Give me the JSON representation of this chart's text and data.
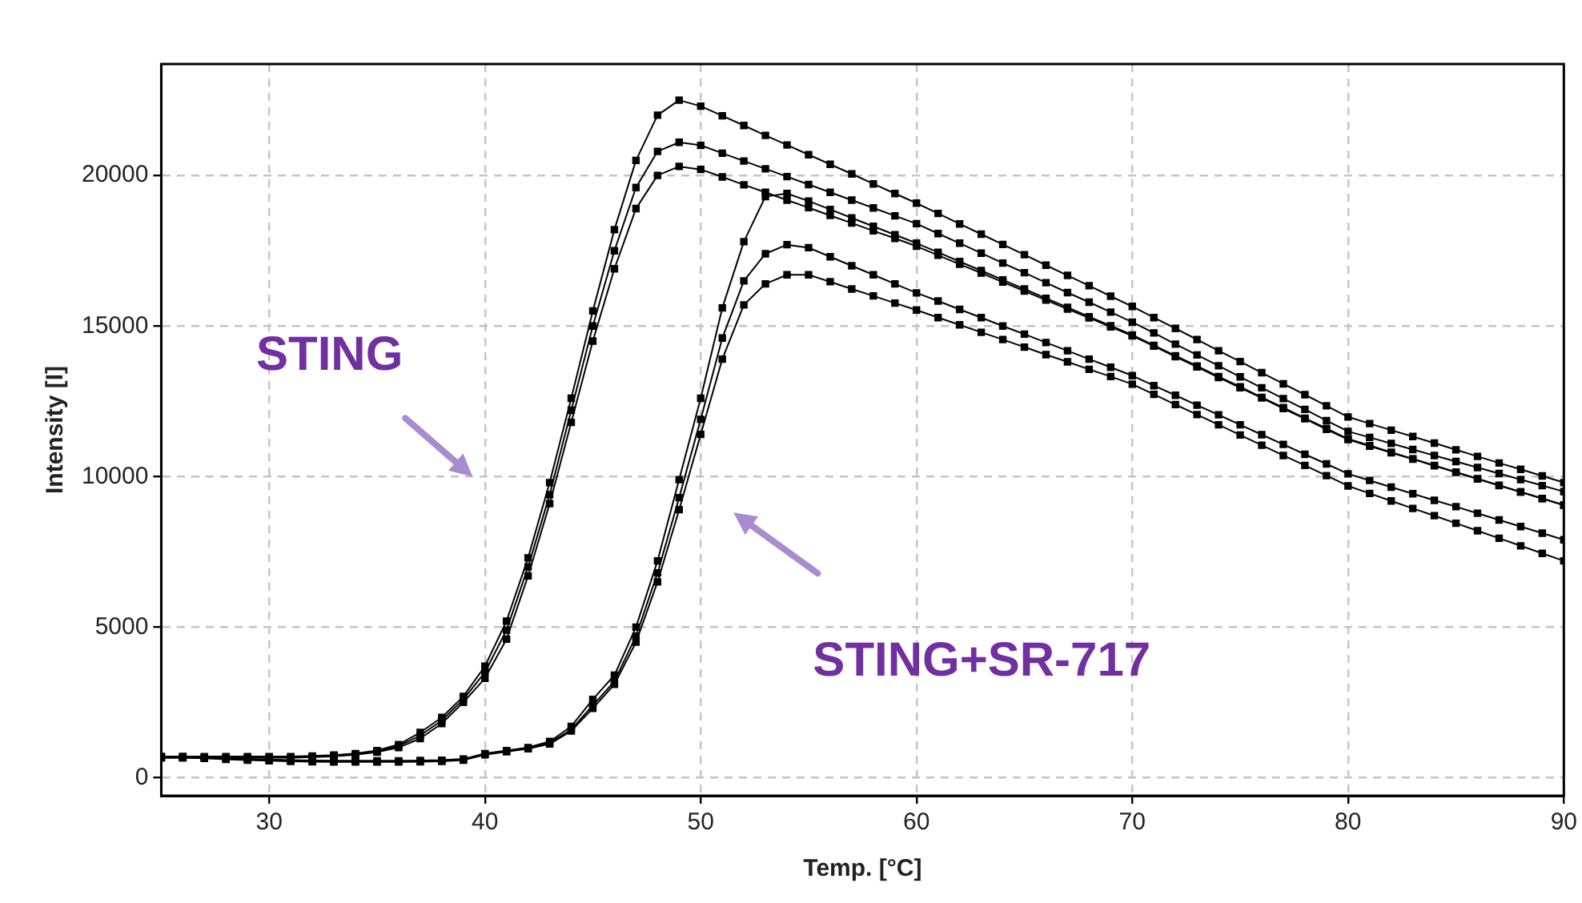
{
  "chart_data": {
    "type": "line",
    "xlabel": "Temp. [°C]",
    "ylabel": "Intensity [I]",
    "x": [
      25,
      26,
      27,
      28,
      29,
      30,
      31,
      32,
      33,
      34,
      35,
      36,
      37,
      38,
      39,
      40,
      41,
      42,
      43,
      44,
      45,
      46,
      47,
      48,
      49,
      50,
      51,
      52,
      53,
      54,
      55,
      56,
      57,
      58,
      59,
      60,
      61,
      62,
      63,
      64,
      65,
      66,
      67,
      68,
      69,
      70,
      71,
      72,
      73,
      74,
      75,
      76,
      77,
      78,
      79,
      80,
      81,
      82,
      83,
      84,
      85,
      86,
      87,
      88,
      89,
      90
    ],
    "xlim": [
      25,
      90
    ],
    "xticks": [
      30,
      40,
      50,
      60,
      70,
      80,
      90
    ],
    "ylim": [
      -600,
      23700
    ],
    "yticks": [
      0,
      5000,
      10000,
      15000,
      20000
    ],
    "grid": true,
    "legend": false,
    "marker": "square",
    "line_style": "solid",
    "series": [
      {
        "color": "#000000",
        "values": [
          700,
          700,
          700,
          700,
          700,
          700,
          700,
          720,
          750,
          800,
          900,
          1100,
          1500,
          2000,
          2700,
          3700,
          5200,
          7300,
          9800,
          12600,
          15500,
          18200,
          20500,
          22000,
          22500,
          22300,
          21980,
          21660,
          21330,
          21010,
          20690,
          20370,
          20050,
          19720,
          19400,
          19080,
          18740,
          18390,
          18050,
          17710,
          17370,
          17020,
          16680,
          16340,
          15990,
          15650,
          15280,
          14920,
          14550,
          14180,
          13820,
          13450,
          13080,
          12720,
          12350,
          11980,
          11760,
          11540,
          11330,
          11110,
          10890,
          10670,
          10450,
          10240,
          10020,
          9800
        ]
      },
      {
        "color": "#000000",
        "values": [
          680,
          680,
          680,
          680,
          680,
          680,
          680,
          700,
          730,
          780,
          870,
          1050,
          1400,
          1900,
          2600,
          3500,
          4900,
          7000,
          9400,
          12200,
          15000,
          17500,
          19600,
          20800,
          21100,
          21000,
          20740,
          20480,
          20220,
          19960,
          19700,
          19440,
          19180,
          18920,
          18660,
          18400,
          18070,
          17750,
          17420,
          17090,
          16770,
          16440,
          16110,
          15790,
          15460,
          15130,
          14770,
          14400,
          14040,
          13680,
          13310,
          12950,
          12590,
          12230,
          11860,
          11500,
          11300,
          11100,
          10900,
          10700,
          10500,
          10300,
          10100,
          9900,
          9700,
          9500
        ]
      },
      {
        "color": "#000000",
        "values": [
          660,
          660,
          660,
          660,
          660,
          660,
          660,
          680,
          710,
          760,
          850,
          1000,
          1300,
          1800,
          2500,
          3300,
          4600,
          6700,
          9100,
          11800,
          14500,
          16900,
          18900,
          20000,
          20300,
          20200,
          19950,
          19690,
          19440,
          19180,
          18930,
          18670,
          18420,
          18160,
          17910,
          17650,
          17350,
          17050,
          16760,
          16460,
          16160,
          15860,
          15560,
          15270,
          14970,
          14670,
          14330,
          13980,
          13640,
          13290,
          12950,
          12610,
          12260,
          11920,
          11570,
          11230,
          11010,
          10790,
          10580,
          10360,
          10140,
          9920,
          9700,
          9490,
          9270,
          9050
        ]
      },
      {
        "color": "#000000",
        "values": [
          700,
          700,
          680,
          650,
          620,
          600,
          580,
          570,
          560,
          560,
          560,
          560,
          570,
          580,
          620,
          800,
          900,
          1000,
          1200,
          1700,
          2600,
          3400,
          5000,
          7200,
          9900,
          12600,
          15600,
          17800,
          19300,
          19400,
          19150,
          18870,
          18590,
          18310,
          18030,
          17750,
          17450,
          17140,
          16840,
          16530,
          16230,
          15920,
          15620,
          15310,
          15010,
          14700,
          14360,
          14010,
          13670,
          13320,
          12980,
          12630,
          12290,
          11940,
          11600,
          11250,
          11030,
          10810,
          10590,
          10370,
          10150,
          9930,
          9710,
          9490,
          9270,
          9050
        ]
      },
      {
        "color": "#000000",
        "values": [
          680,
          680,
          660,
          630,
          600,
          580,
          560,
          550,
          540,
          540,
          540,
          540,
          550,
          560,
          600,
          780,
          880,
          980,
          1150,
          1600,
          2400,
          3200,
          4700,
          6800,
          9300,
          11900,
          14600,
          16500,
          17400,
          17700,
          17600,
          17300,
          17000,
          16700,
          16400,
          16100,
          15830,
          15550,
          15280,
          15000,
          14730,
          14450,
          14180,
          13900,
          13630,
          13350,
          13020,
          12700,
          12370,
          12050,
          11720,
          11390,
          11070,
          10740,
          10420,
          10090,
          9870,
          9650,
          9430,
          9210,
          9000,
          8780,
          8560,
          8340,
          8120,
          7900
        ]
      },
      {
        "color": "#000000",
        "values": [
          660,
          660,
          640,
          610,
          580,
          560,
          540,
          530,
          520,
          520,
          520,
          520,
          530,
          540,
          580,
          760,
          860,
          960,
          1120,
          1550,
          2300,
          3100,
          4500,
          6500,
          8900,
          11400,
          13900,
          15700,
          16400,
          16700,
          16700,
          16470,
          16230,
          16000,
          15760,
          15530,
          15280,
          15040,
          14790,
          14550,
          14300,
          14050,
          13810,
          13560,
          13320,
          13070,
          12730,
          12390,
          12060,
          11720,
          11380,
          11040,
          10700,
          10370,
          10030,
          9690,
          9440,
          9190,
          8940,
          8700,
          8450,
          8200,
          7950,
          7700,
          7450,
          7200
        ]
      }
    ],
    "annotations": [
      "STING",
      "STING+SR-717"
    ]
  }
}
